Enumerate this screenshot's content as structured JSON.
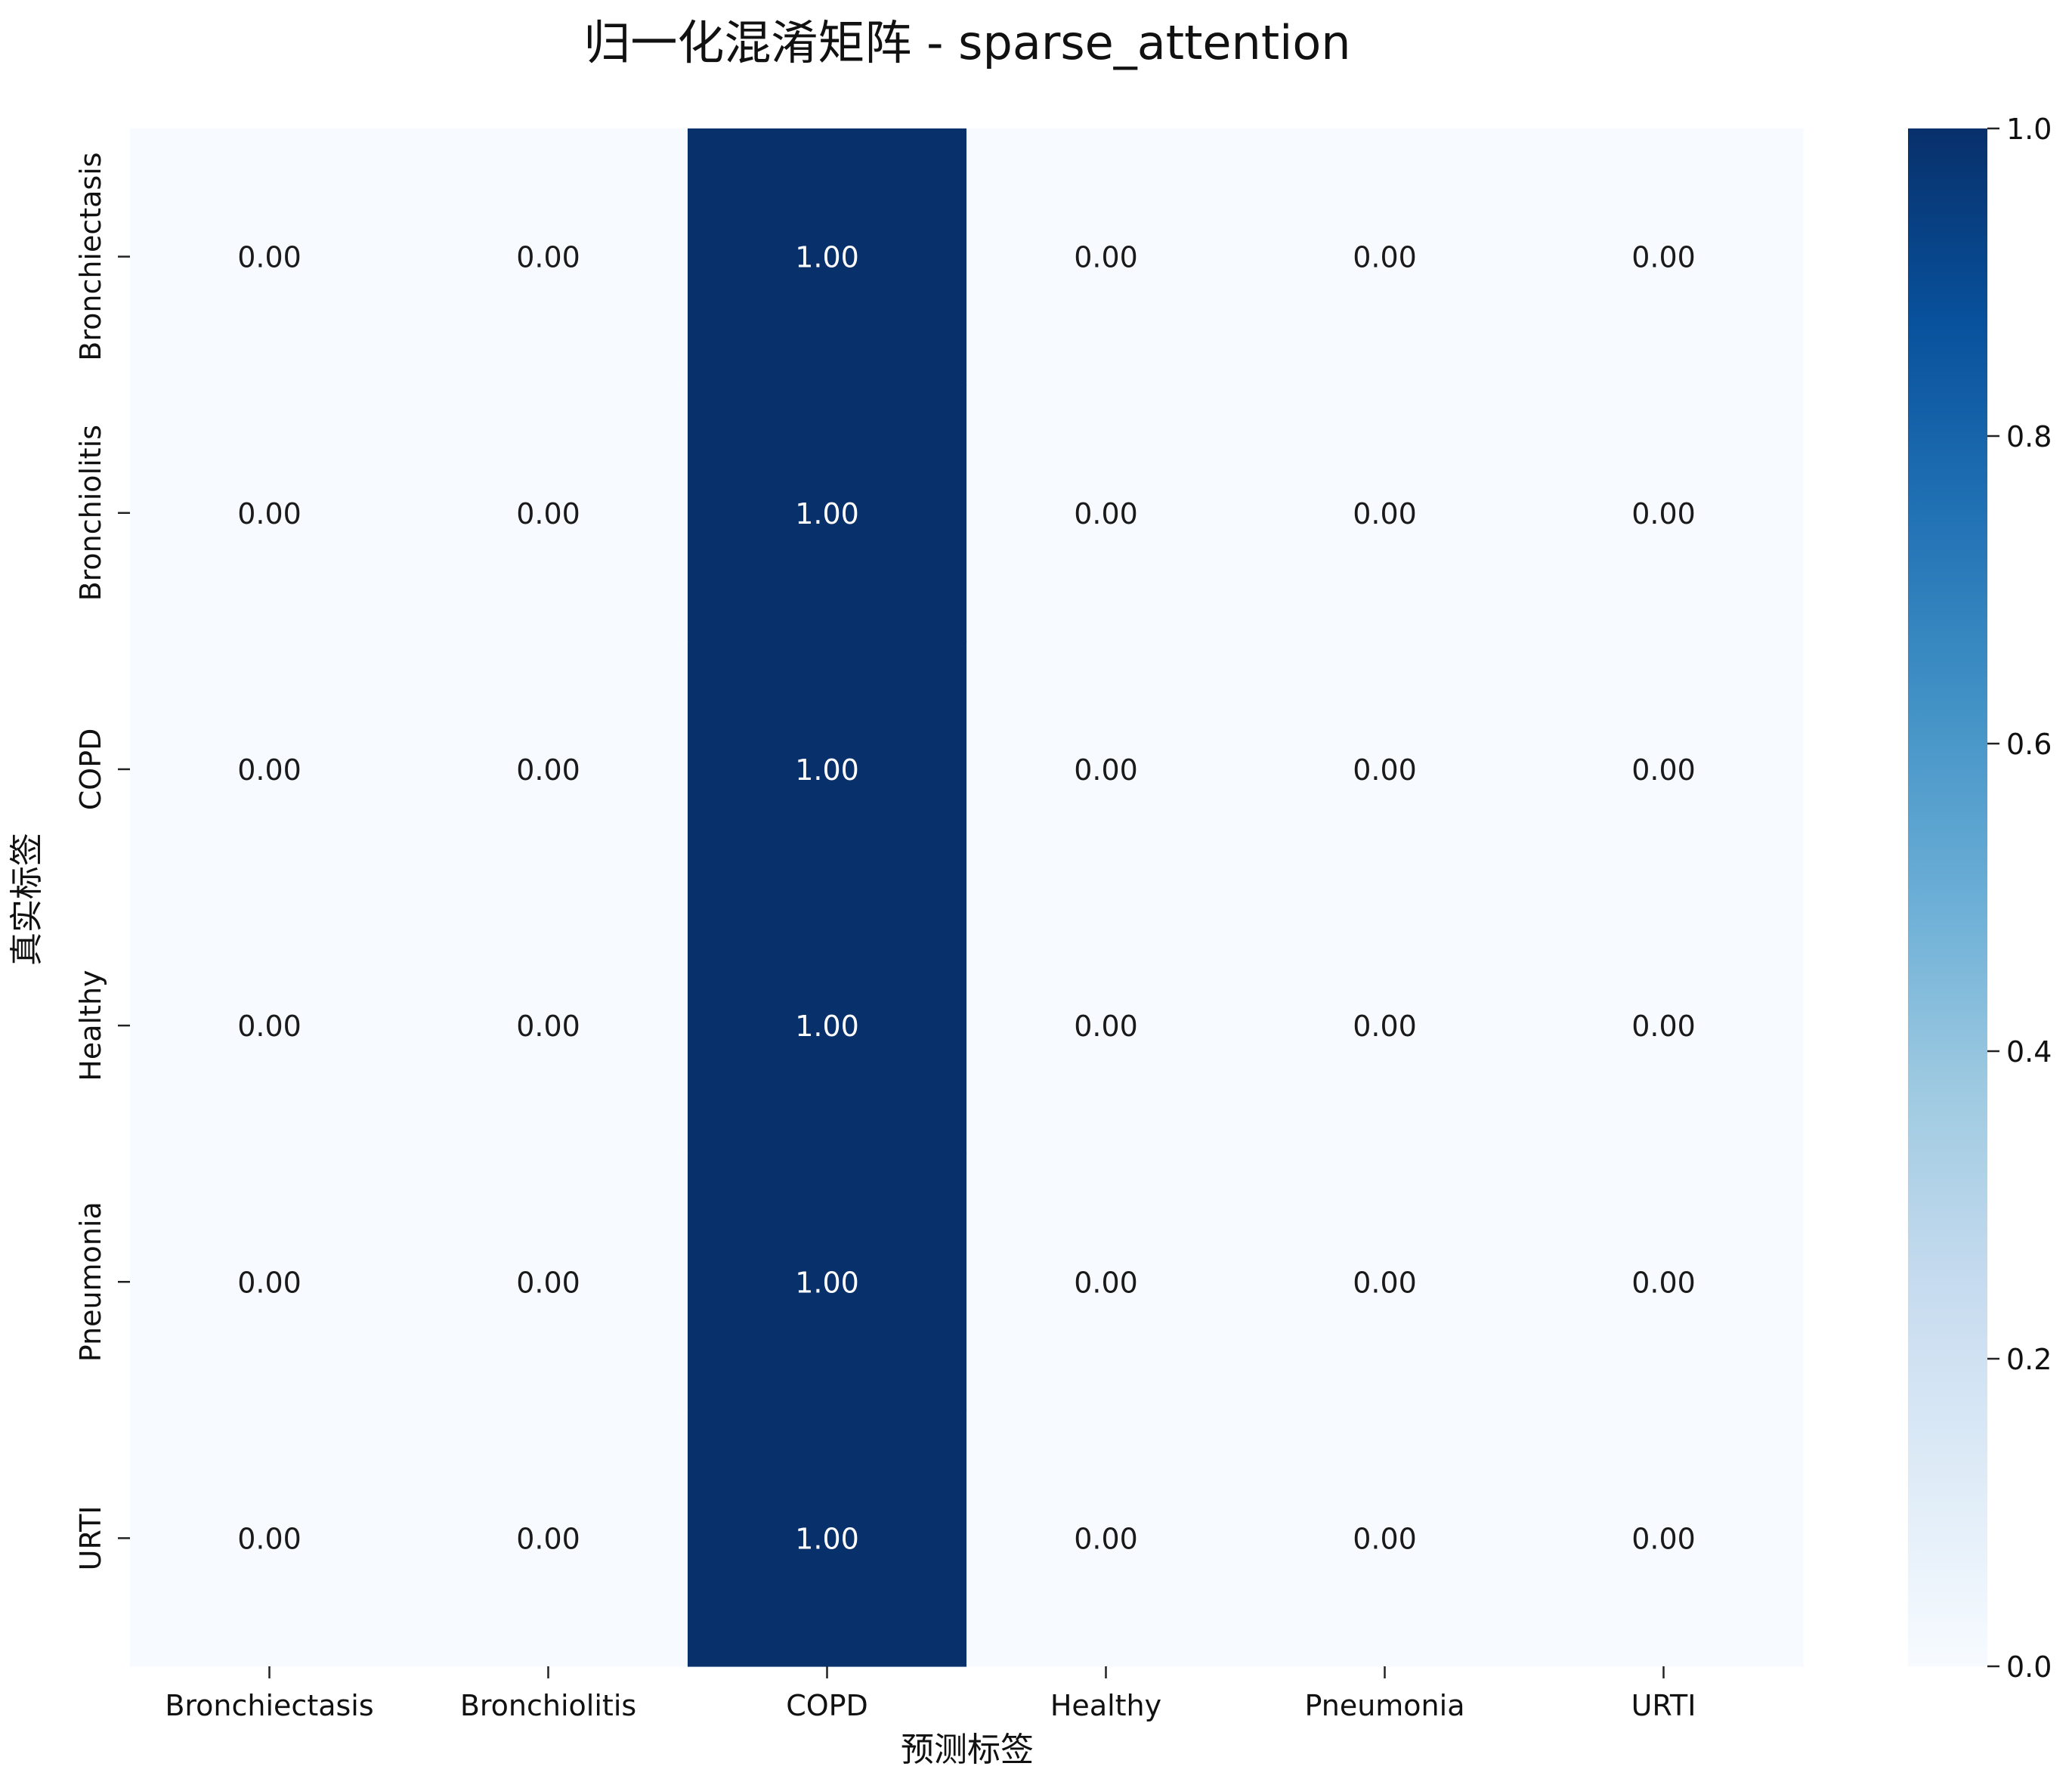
{
  "chart_data": {
    "type": "heatmap",
    "title": "归一化混淆矩阵 - sparse_attention",
    "xlabel": "预测标签",
    "ylabel": "真实标签",
    "x_categories": [
      "Bronchiectasis",
      "Bronchiolitis",
      "COPD",
      "Healthy",
      "Pneumonia",
      "URTI"
    ],
    "y_categories": [
      "Bronchiectasis",
      "Bronchiolitis",
      "COPD",
      "Healthy",
      "Pneumonia",
      "URTI"
    ],
    "values": [
      [
        0.0,
        0.0,
        1.0,
        0.0,
        0.0,
        0.0
      ],
      [
        0.0,
        0.0,
        1.0,
        0.0,
        0.0,
        0.0
      ],
      [
        0.0,
        0.0,
        1.0,
        0.0,
        0.0,
        0.0
      ],
      [
        0.0,
        0.0,
        1.0,
        0.0,
        0.0,
        0.0
      ],
      [
        0.0,
        0.0,
        1.0,
        0.0,
        0.0,
        0.0
      ],
      [
        0.0,
        0.0,
        1.0,
        0.0,
        0.0,
        0.0
      ]
    ],
    "value_labels": [
      [
        "0.00",
        "0.00",
        "1.00",
        "0.00",
        "0.00",
        "0.00"
      ],
      [
        "0.00",
        "0.00",
        "1.00",
        "0.00",
        "0.00",
        "0.00"
      ],
      [
        "0.00",
        "0.00",
        "1.00",
        "0.00",
        "0.00",
        "0.00"
      ],
      [
        "0.00",
        "0.00",
        "1.00",
        "0.00",
        "0.00",
        "0.00"
      ],
      [
        "0.00",
        "0.00",
        "1.00",
        "0.00",
        "0.00",
        "0.00"
      ],
      [
        "0.00",
        "0.00",
        "1.00",
        "0.00",
        "0.00",
        "0.00"
      ]
    ],
    "colormap": "Blues",
    "colormap_stops": [
      "#f7fbff",
      "#deebf7",
      "#c6dbef",
      "#9ecae1",
      "#6baed6",
      "#4292c6",
      "#2171b5",
      "#08519c",
      "#08306b"
    ],
    "colorbar": {
      "range": [
        0.0,
        1.0
      ],
      "ticks": [
        0.0,
        0.2,
        0.4,
        0.6,
        0.8,
        1.0
      ],
      "tick_labels": [
        "0.0",
        "0.2",
        "0.4",
        "0.6",
        "0.8",
        "1.0"
      ]
    },
    "grid": false
  }
}
